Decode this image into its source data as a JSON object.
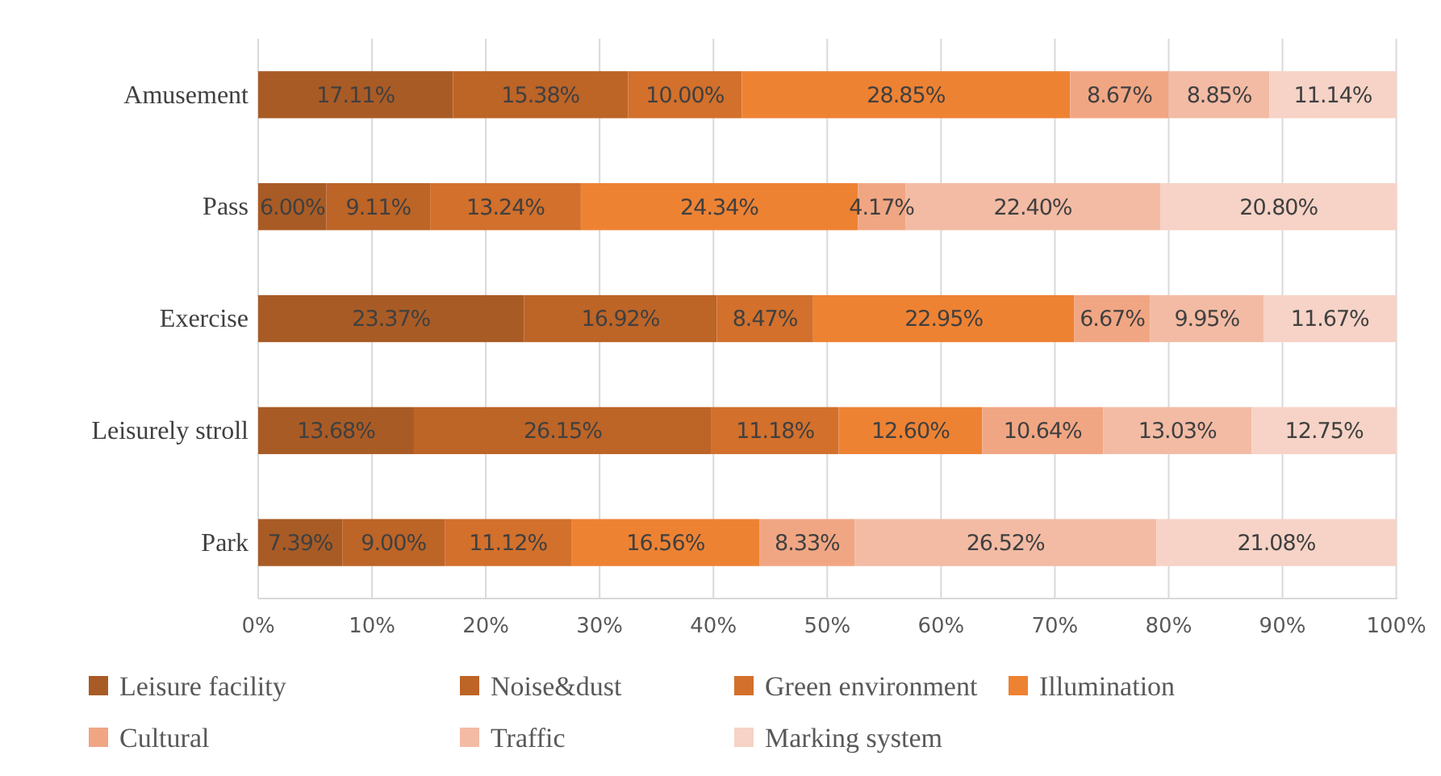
{
  "chart_data": {
    "type": "bar",
    "orientation": "horizontal",
    "stacked": true,
    "categories": [
      "Amusement",
      "Pass",
      "Exercise",
      "Leisurely stroll",
      "Park"
    ],
    "series": [
      {
        "name": "Leisure facility",
        "color": "#a95b25",
        "values": [
          17.11,
          6.0,
          23.37,
          13.68,
          7.39
        ],
        "value_labels": [
          "17.11%",
          "6.00%",
          "23.37%",
          "13.68%",
          "7.39%"
        ]
      },
      {
        "name": "Noise&dust",
        "color": "#bd6427",
        "values": [
          15.38,
          9.11,
          16.92,
          26.15,
          9.0
        ],
        "value_labels": [
          "15.38%",
          "9.11%",
          "16.92%",
          "26.15%",
          "9.00%"
        ]
      },
      {
        "name": "Green environment",
        "color": "#d2702c",
        "values": [
          10.0,
          13.24,
          8.47,
          11.18,
          11.12
        ],
        "value_labels": [
          "10.00%",
          "13.24%",
          "8.47%",
          "11.18%",
          "11.12%"
        ]
      },
      {
        "name": "Illumination",
        "color": "#ee8233",
        "values": [
          28.85,
          24.34,
          22.95,
          12.6,
          16.56
        ],
        "value_labels": [
          "28.85%",
          "24.34%",
          "22.95%",
          "12.60%",
          "16.56%"
        ]
      },
      {
        "name": "Cultural",
        "color": "#f1a683",
        "values": [
          8.67,
          4.17,
          6.67,
          10.64,
          8.33
        ],
        "value_labels": [
          "8.67%",
          "4.17%",
          "6.67%",
          "10.64%",
          "8.33%"
        ]
      },
      {
        "name": "Traffic",
        "color": "#f3bba4",
        "values": [
          8.85,
          22.4,
          9.95,
          13.03,
          26.52
        ],
        "value_labels": [
          "8.85%",
          "22.40%",
          "9.95%",
          "13.03%",
          "26.52%"
        ]
      },
      {
        "name": "Marking system",
        "color": "#f6d3c6",
        "values": [
          11.14,
          20.8,
          11.67,
          12.75,
          21.08
        ],
        "value_labels": [
          "11.14%",
          "20.80%",
          "11.67%",
          "12.75%",
          "21.08%"
        ]
      }
    ],
    "xlim": [
      0,
      100.1
    ],
    "xticks": [
      {
        "value": 0,
        "label": "0%"
      },
      {
        "value": 10,
        "label": "10%"
      },
      {
        "value": 20,
        "label": "20%"
      },
      {
        "value": 30,
        "label": "30%"
      },
      {
        "value": 40,
        "label": "40%"
      },
      {
        "value": 50,
        "label": "50%"
      },
      {
        "value": 60,
        "label": "60%"
      },
      {
        "value": 70,
        "label": "70%"
      },
      {
        "value": 80,
        "label": "80%"
      },
      {
        "value": 90,
        "label": "90%"
      },
      {
        "value": 100,
        "label": "100%"
      }
    ],
    "grid": "x",
    "legend": "bottom"
  }
}
